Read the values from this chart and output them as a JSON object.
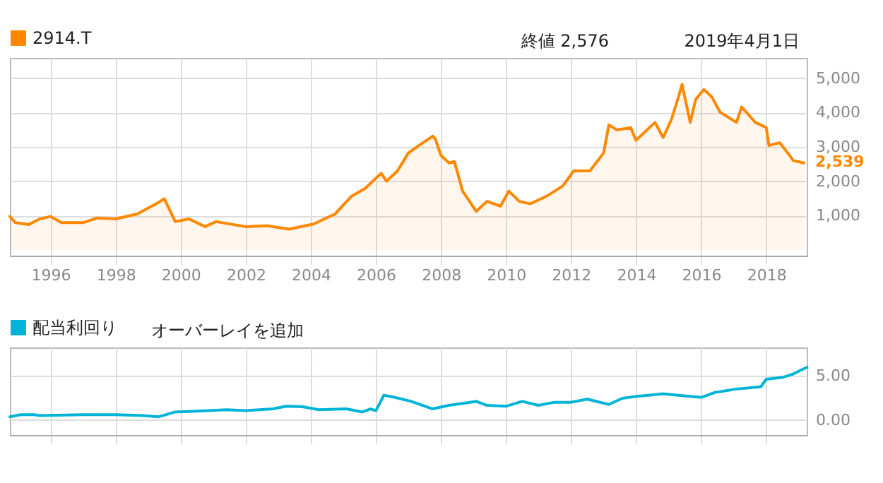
{
  "chart_data": [
    {
      "type": "area",
      "legend": "top left",
      "grid": true,
      "annotations": [
        "終値 2,576",
        "2019年4月1日",
        {
          "text": "2,539",
          "x": "2019-04",
          "y": 2539
        }
      ],
      "xlim": [
        "1994-10",
        "2019-04"
      ],
      "xticks": [
        "1996",
        "1998",
        "2000",
        "2002",
        "2004",
        "2006",
        "2008",
        "2010",
        "2012",
        "2014",
        "2016",
        "2018"
      ],
      "ylim": [
        -170,
        5590
      ],
      "yticks": [
        {
          "value": 1000,
          "label": "1,000"
        },
        {
          "value": 2000,
          "label": "2,000"
        },
        {
          "value": 3000,
          "label": "3,000"
        },
        {
          "value": 4000,
          "label": "4,000"
        },
        {
          "value": 5000,
          "label": "5,000"
        }
      ],
      "x": [
        "1994-10",
        "1994-12",
        "1995-05",
        "1995-09",
        "1996-01",
        "1996-05",
        "1997-01",
        "1997-06",
        "1998-01",
        "1998-09",
        "1999-04",
        "1999-07",
        "1999-11",
        "2000-04",
        "2000-10",
        "2001-02",
        "2002-01",
        "2002-09",
        "2003-05",
        "2004-02",
        "2004-10",
        "2005-04",
        "2005-09",
        "2006-03",
        "2006-05",
        "2006-09",
        "2007-01",
        "2007-05",
        "2007-10",
        "2007-11",
        "2008-01",
        "2008-04",
        "2008-06",
        "2008-09",
        "2009-02",
        "2009-06",
        "2009-11",
        "2010-02",
        "2010-06",
        "2010-10",
        "2011-04",
        "2011-10",
        "2012-02",
        "2012-08",
        "2013-01",
        "2013-03",
        "2013-06",
        "2013-11",
        "2014-01",
        "2014-08",
        "2014-11",
        "2015-02",
        "2015-05",
        "2015-06",
        "2015-09",
        "2015-11",
        "2016-02",
        "2016-05",
        "2016-08",
        "2017-02",
        "2017-04",
        "2017-09",
        "2018-01",
        "2018-02",
        "2018-06",
        "2018-09",
        "2018-11",
        "2019-03"
      ],
      "series": [
        {
          "name": "2914.T",
          "color": "#ff8800",
          "values": [
            970,
            790,
            735,
            900,
            970,
            790,
            790,
            925,
            900,
            1045,
            1340,
            1485,
            820,
            900,
            675,
            820,
            675,
            700,
            600,
            750,
            1045,
            1560,
            1785,
            2230,
            2000,
            2300,
            2820,
            3040,
            3310,
            3220,
            2750,
            2530,
            2570,
            1710,
            1120,
            1410,
            1270,
            1710,
            1410,
            1340,
            1560,
            1860,
            2300,
            2300,
            2820,
            3640,
            3490,
            3560,
            3190,
            3710,
            3270,
            3790,
            4530,
            4820,
            3710,
            4380,
            4670,
            4450,
            4010,
            3710,
            4160,
            3710,
            3560,
            3040,
            3120,
            2820,
            2600,
            2530
          ]
        }
      ]
    },
    {
      "type": "line",
      "legend": "top left",
      "grid": true,
      "tick_labels": "y",
      "annotations": [
        "オーバーレイを追加"
      ],
      "xlim": [
        "1994-10",
        "2019-04"
      ],
      "xticks": [
        "1996",
        "1998",
        "2000",
        "2002",
        "2004",
        "2006",
        "2008",
        "2010",
        "2012",
        "2014",
        "2016",
        "2018"
      ],
      "ylim": [
        -1.7,
        8.2
      ],
      "yticks": [
        {
          "value": 0,
          "label": "0.00"
        },
        {
          "value": 5,
          "label": "5.00"
        }
      ],
      "x": [
        "1994-10",
        "1995-02",
        "1995-07",
        "1995-09",
        "1997-01",
        "1998-01",
        "1998-11",
        "1999-05",
        "1999-11",
        "2000-07",
        "2001-06",
        "2002-01",
        "2002-11",
        "2003-04",
        "2003-10",
        "2004-04",
        "2005-02",
        "2005-08",
        "2005-11",
        "2006-01",
        "2006-04",
        "2006-08",
        "2007-02",
        "2007-10",
        "2008-04",
        "2009-02",
        "2009-06",
        "2010-01",
        "2010-07",
        "2011-01",
        "2011-07",
        "2012-01",
        "2012-07",
        "2013-03",
        "2013-08",
        "2014-02",
        "2014-11",
        "2016-01",
        "2016-06",
        "2017-02",
        "2017-11",
        "2018-01",
        "2018-07",
        "2018-11",
        "2019-04"
      ],
      "series": [
        {
          "name": "配当利回り",
          "color": "#00b4d8",
          "values": [
            0.36,
            0.6,
            0.6,
            0.5,
            0.6,
            0.6,
            0.5,
            0.36,
            0.9,
            1.0,
            1.15,
            1.05,
            1.25,
            1.55,
            1.5,
            1.15,
            1.25,
            0.9,
            1.25,
            1.05,
            2.8,
            2.55,
            2.1,
            1.25,
            1.65,
            2.1,
            1.65,
            1.55,
            2.1,
            1.65,
            2.0,
            2.0,
            2.35,
            1.75,
            2.45,
            2.7,
            2.95,
            2.55,
            3.1,
            3.5,
            3.75,
            4.6,
            4.8,
            5.2,
            5.95
          ]
        }
      ]
    }
  ]
}
